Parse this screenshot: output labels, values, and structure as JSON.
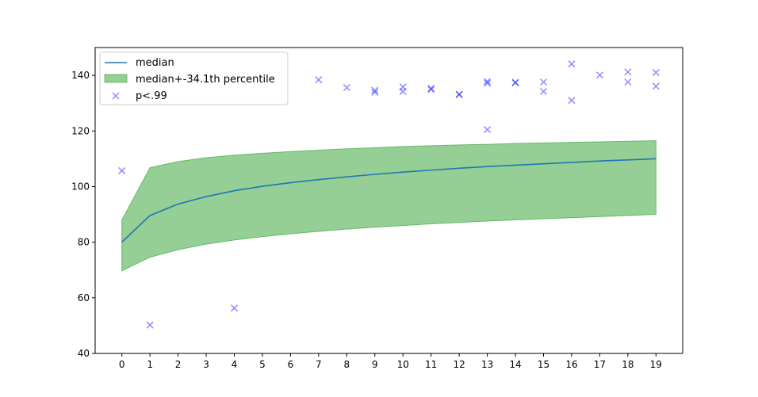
{
  "chart_data": {
    "type": "line",
    "title": "",
    "xlabel": "",
    "ylabel": "",
    "xlim": [
      -0.95,
      19.95
    ],
    "ylim": [
      40,
      150
    ],
    "x_ticks": [
      0,
      1,
      2,
      3,
      4,
      5,
      6,
      7,
      8,
      9,
      10,
      11,
      12,
      13,
      14,
      15,
      16,
      17,
      18,
      19
    ],
    "y_ticks": [
      40,
      60,
      80,
      100,
      120,
      140
    ],
    "grid": false,
    "legend_position": "top-left",
    "x": [
      0,
      1,
      2,
      3,
      4,
      5,
      6,
      7,
      8,
      9,
      10,
      11,
      12,
      13,
      14,
      15,
      16,
      17,
      18,
      19
    ],
    "series": [
      {
        "name": "median",
        "kind": "line",
        "color": "#1f77b4",
        "values": [
          80.0,
          89.6,
          93.7,
          96.4,
          98.5,
          100.1,
          101.4,
          102.5,
          103.5,
          104.4,
          105.2,
          105.9,
          106.6,
          107.2,
          107.7,
          108.2,
          108.7,
          109.2,
          109.6,
          110.0
        ]
      },
      {
        "name": "median+-34.1th percentile",
        "kind": "band",
        "color": "#2ca02c",
        "upper": [
          88.0,
          106.8,
          109.0,
          110.4,
          111.3,
          112.0,
          112.6,
          113.1,
          113.6,
          114.0,
          114.4,
          114.7,
          115.0,
          115.2,
          115.5,
          115.7,
          115.9,
          116.1,
          116.3,
          116.5
        ],
        "lower": [
          69.7,
          74.6,
          77.3,
          79.3,
          80.8,
          82.0,
          83.0,
          83.9,
          84.7,
          85.4,
          86.0,
          86.6,
          87.1,
          87.6,
          88.0,
          88.4,
          88.8,
          89.2,
          89.6,
          90.0
        ]
      },
      {
        "name": "p<.99",
        "kind": "scatter",
        "color": "#0000ff",
        "points": [
          [
            0,
            105.7
          ],
          [
            1,
            50.2
          ],
          [
            4,
            56.3
          ],
          [
            7,
            138.4
          ],
          [
            8,
            135.6
          ],
          [
            9,
            134.6
          ],
          [
            9,
            133.9
          ],
          [
            10,
            135.8
          ],
          [
            10,
            134.2
          ],
          [
            11,
            135.3
          ],
          [
            11,
            134.9
          ],
          [
            12,
            133.2
          ],
          [
            12,
            133.0
          ],
          [
            13,
            137.8
          ],
          [
            13,
            137.2
          ],
          [
            13,
            120.5
          ],
          [
            14,
            137.5
          ],
          [
            14,
            137.3
          ],
          [
            15,
            137.6
          ],
          [
            15,
            134.2
          ],
          [
            16,
            144.1
          ],
          [
            16,
            131.0
          ],
          [
            17,
            140.1
          ],
          [
            18,
            141.2
          ],
          [
            18,
            137.6
          ],
          [
            19,
            141.0
          ],
          [
            19,
            136.1
          ]
        ]
      }
    ]
  }
}
